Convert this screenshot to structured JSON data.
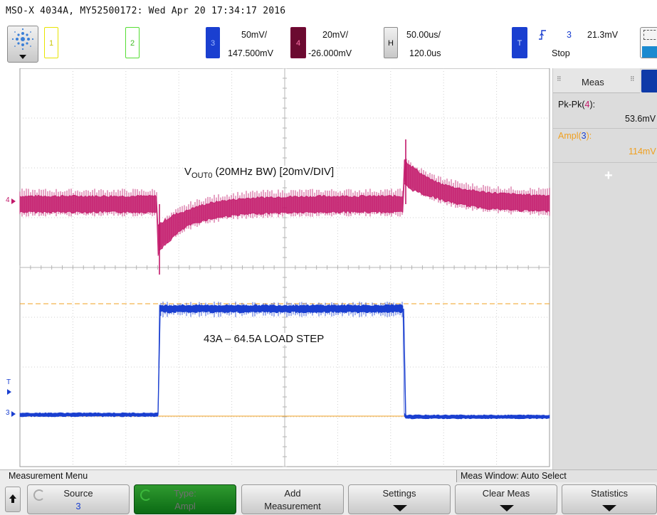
{
  "window": {
    "title": "MSO-X 4034A, MY52500172: Wed Apr 20 17:34:17 2016"
  },
  "toolbar": {
    "channels": [
      {
        "id": "1",
        "color": "#e8e400"
      },
      {
        "id": "2",
        "color": "#55dd33"
      }
    ],
    "ch3": {
      "id": "3",
      "scale": "50mV/",
      "offset": "147.500mV",
      "color": "#1a3fd0"
    },
    "ch4": {
      "id": "4",
      "scale": "20mV/",
      "offset": "-26.000mV",
      "color": "#c2186a"
    },
    "horizontal": {
      "label": "H",
      "scale": "50.00us/",
      "delay": "120.0us"
    },
    "trigger": {
      "label": "T",
      "source": "3",
      "level": "21.3mV",
      "state": "Stop",
      "edge_icon": "rising-edge-icon"
    }
  },
  "screen": {
    "annotation_vout": {
      "main": "V",
      "sub": "OUT0",
      "rest": " (20MHz BW) [20mV/DIV]"
    },
    "annotation_load": "43A – 64.5A LOAD STEP",
    "markers": {
      "ch4": "4",
      "ch3": "3",
      "trigger": "T"
    },
    "colors": {
      "ch3": "#1a3fd0",
      "ch4": "#c2186a",
      "cursor": "#f0a020",
      "grid": "#cfcfcf"
    }
  },
  "meas_panel": {
    "tab_label": "Meas",
    "items": [
      {
        "label_prefix": "Pk-Pk(",
        "channel": "4",
        "label_suffix": "):",
        "value": "53.6mV",
        "color": "#111111",
        "chcolor": "#c2186a"
      },
      {
        "label_prefix": "Ampl(",
        "channel": "3",
        "label_suffix": "):",
        "value": "114mV",
        "color": "#f0a020",
        "chcolor": "#1a3fd0"
      }
    ],
    "add_symbol": "+"
  },
  "menu": {
    "title": "Measurement Menu",
    "meas_window": "Meas Window: Auto Select"
  },
  "softkeys": [
    {
      "line1": "Source",
      "line2": "3"
    },
    {
      "line1": "Type:",
      "line2": "Ampl"
    },
    {
      "line1": "Add",
      "line2": "Measurement"
    },
    {
      "line1": "Settings",
      "line2": ""
    },
    {
      "line1": "Clear Meas",
      "line2": ""
    },
    {
      "line1": "Statistics",
      "line2": ""
    }
  ]
}
